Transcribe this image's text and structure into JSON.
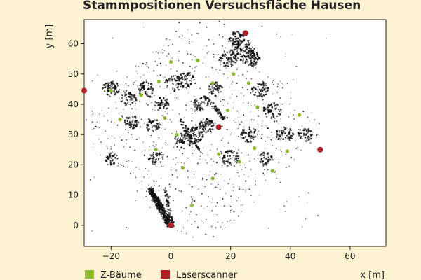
{
  "chart_data": {
    "type": "scatter",
    "title": "Stammpositionen Versuchsfläche Hausen",
    "xlabel": "x [m]",
    "ylabel": "y [m]",
    "xlim": [
      -29,
      72
    ],
    "ylim": [
      -7,
      68
    ],
    "xticks": [
      -20,
      0,
      20,
      40,
      60
    ],
    "yticks": [
      0,
      10,
      20,
      30,
      40,
      50,
      60
    ],
    "grid": false,
    "legend_position": "bottom-left",
    "colors": {
      "z_baeume": "#8dbb2b",
      "laserscanner": "#b01e23",
      "point_cloud": "#111111",
      "background": "#fdf3d3",
      "plot_background": "#ffffff"
    },
    "series": [
      {
        "name": "Z-Bäume",
        "points": [
          [
            -20,
            44.5
          ],
          [
            -17,
            35
          ],
          [
            -10,
            43
          ],
          [
            -4,
            47.5
          ],
          [
            -5,
            25
          ],
          [
            -2,
            35.5
          ],
          [
            0,
            54
          ],
          [
            2,
            30
          ],
          [
            4,
            19
          ],
          [
            7,
            6.5
          ],
          [
            9,
            54.5
          ],
          [
            14,
            47
          ],
          [
            14,
            15.5
          ],
          [
            16,
            23.5
          ],
          [
            19,
            38
          ],
          [
            21,
            50
          ],
          [
            23,
            21
          ],
          [
            26,
            47
          ],
          [
            28,
            25.5
          ],
          [
            29,
            39
          ],
          [
            34,
            18
          ],
          [
            39,
            24.5
          ],
          [
            43,
            36.5
          ]
        ]
      },
      {
        "name": "Laserscanner",
        "points": [
          [
            -29,
            44.5
          ],
          [
            0,
            0
          ],
          [
            16,
            32.5
          ],
          [
            25,
            63.5
          ],
          [
            50,
            25
          ]
        ]
      }
    ]
  }
}
